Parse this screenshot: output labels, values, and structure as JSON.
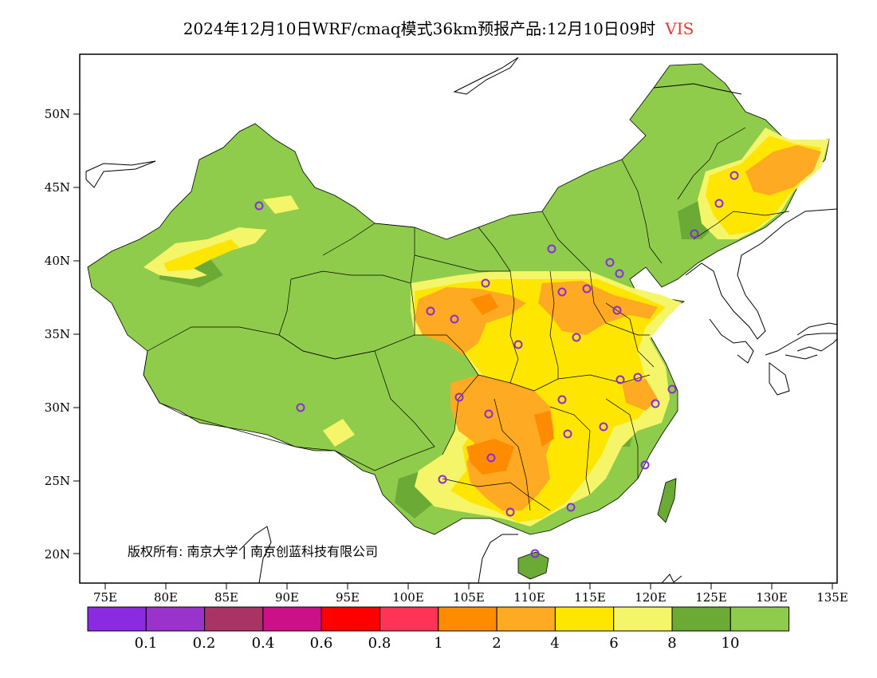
{
  "header": {
    "title": "2024年12月10日WRF/cmaq模式36km预报产品:12月10日09时",
    "variable": "VIS"
  },
  "map": {
    "lon_labels": [
      "75E",
      "80E",
      "85E",
      "90E",
      "95E",
      "100E",
      "105E",
      "110E",
      "115E",
      "120E",
      "125E",
      "130E",
      "135E"
    ],
    "lat_labels": [
      "50N",
      "45N",
      "40N",
      "35N",
      "30N",
      "25N",
      "20N"
    ],
    "copyright": "版权所有: 南京大学 | 南京创蓝科技有限公司"
  },
  "legend": {
    "colors": [
      "#8a2be2",
      "#9933cc",
      "#aa3366",
      "#cc1188",
      "#ff0000",
      "#ff3355",
      "#ff8c00",
      "#ffaa22",
      "#ffe600",
      "#f5f56a",
      "#6aaa35",
      "#8fcc4b"
    ],
    "labels": [
      "0.1",
      "0.2",
      "0.4",
      "0.6",
      "0.8",
      "1",
      "2",
      "4",
      "6",
      "8",
      "10"
    ]
  },
  "colors": {
    "land_base": "#8fcc4b",
    "land_dark": "#6aaa35",
    "light_yellow": "#f5f56a",
    "yellow": "#ffe600",
    "orange": "#ffaa22",
    "dark_orange": "#ff8c00",
    "station_marker": "#8a2be2",
    "variable_color": "#e53935"
  }
}
